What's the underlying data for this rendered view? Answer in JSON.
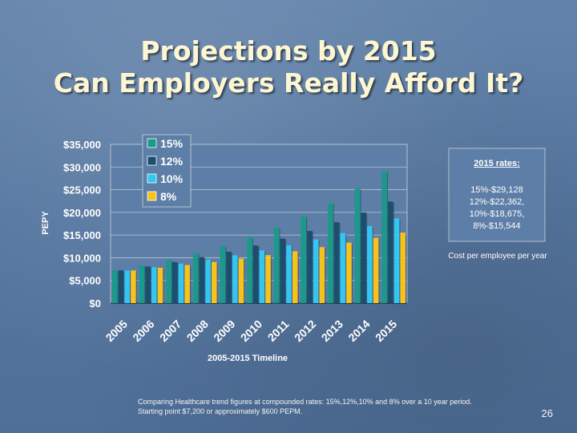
{
  "slide": {
    "title_line1": "Projections by 2015",
    "title_line2": "Can Employers Really Afford It?",
    "note_line1": "Comparing Healthcare trend figures at compounded rates: 15%,12%,10% and 8% over a 10 year period.",
    "note_line2": "Starting point $7,200 or approximately $600 PEPM.",
    "slide_number": "26",
    "rates_title": "2015 rates:",
    "rates": [
      "15%-$29,128",
      "12%-$22,362,",
      "10%-$18,675,",
      "8%-$15,544"
    ],
    "cost_note": "Cost per employee per year"
  },
  "chart_data": {
    "type": "bar",
    "xlabel": "2005-2015 Timeline",
    "ylabel": "PEPY",
    "ylim": [
      0,
      35000
    ],
    "yticks": [
      "$0",
      "$5,000",
      "$10,000",
      "$15,000",
      "$20,000",
      "$25,000",
      "$30,000",
      "$35,000"
    ],
    "ytick_values": [
      0,
      5000,
      10000,
      15000,
      20000,
      25000,
      30000,
      35000
    ],
    "grid": true,
    "legend_position": "top-left",
    "categories": [
      "2005",
      "2006",
      "2007",
      "2008",
      "2009",
      "2010",
      "2011",
      "2012",
      "2013",
      "2014",
      "2015"
    ],
    "series": [
      {
        "name": "15%",
        "color": "#1a9a8a",
        "values": [
          7200,
          8280,
          9522,
          10950,
          12593,
          14482,
          16654,
          19152,
          22025,
          25329,
          29128
        ]
      },
      {
        "name": "12%",
        "color": "#1a4f6e",
        "values": [
          7200,
          8064,
          9032,
          10115,
          11329,
          12689,
          14211,
          15917,
          17827,
          19966,
          22362
        ]
      },
      {
        "name": "10%",
        "color": "#33c6f2",
        "values": [
          7200,
          7920,
          8712,
          9583,
          10542,
          11596,
          12755,
          14031,
          15434,
          16977,
          18675
        ]
      },
      {
        "name": "8%",
        "color": "#f6c21c",
        "values": [
          7200,
          7776,
          8398,
          9070,
          9796,
          10579,
          11426,
          12340,
          13327,
          14393,
          15544
        ]
      }
    ]
  }
}
